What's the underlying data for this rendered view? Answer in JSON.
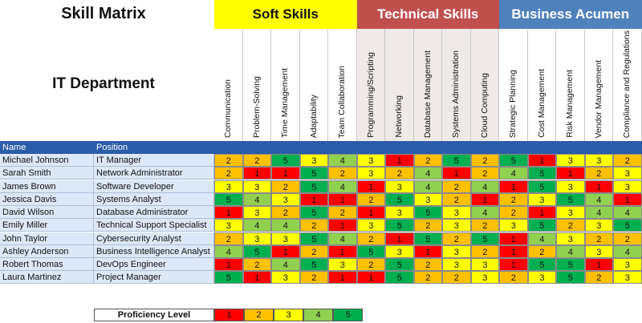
{
  "sheet": {
    "title": "Skill Matrix",
    "department": "IT Department"
  },
  "groups": [
    {
      "label": "Soft Skills",
      "color": "#ffff00",
      "text_color": "#111111"
    },
    {
      "label": "Technical Skills",
      "color": "#c0504d",
      "text_color": "#ffffff"
    },
    {
      "label": "Business Acumen",
      "color": "#4f81bd",
      "text_color": "#ffffff"
    }
  ],
  "skills": [
    "Communication",
    "Problem-Solving",
    "Time Management",
    "Adaptability",
    "Team Collaboration",
    "Programming/Scripting",
    "Networking",
    "Database Management",
    "Systems Administration",
    "Cloud Computing",
    "Strategic Planning",
    "Cost Management",
    "Risk Management",
    "Vendor Management",
    "Compliance and Regulations"
  ],
  "table": {
    "name_header": "Name",
    "position_header": "Position",
    "rows": [
      {
        "name": "Michael Johnson",
        "position": "IT Manager",
        "scores": [
          2,
          2,
          5,
          3,
          4,
          3,
          1,
          2,
          5,
          2,
          5,
          1,
          3,
          3,
          2
        ]
      },
      {
        "name": "Sarah Smith",
        "position": "Network Administrator",
        "scores": [
          2,
          1,
          1,
          5,
          2,
          3,
          2,
          4,
          1,
          2,
          4,
          5,
          1,
          2,
          3
        ]
      },
      {
        "name": "James Brown",
        "position": "Software Developer",
        "scores": [
          3,
          3,
          2,
          5,
          4,
          1,
          3,
          4,
          2,
          4,
          1,
          5,
          3,
          1,
          3
        ]
      },
      {
        "name": "Jessica Davis",
        "position": "Systems Analyst",
        "scores": [
          5,
          4,
          3,
          1,
          1,
          2,
          5,
          3,
          2,
          1,
          2,
          3,
          5,
          4,
          1
        ]
      },
      {
        "name": "David Wilson",
        "position": "Database Administrator",
        "scores": [
          1,
          3,
          2,
          5,
          2,
          1,
          3,
          5,
          3,
          4,
          2,
          1,
          3,
          4,
          4
        ]
      },
      {
        "name": "Emily Miller",
        "position": "Technical Support Specialist",
        "scores": [
          3,
          4,
          4,
          2,
          1,
          3,
          5,
          2,
          3,
          2,
          3,
          5,
          2,
          3,
          5
        ]
      },
      {
        "name": "John Taylor",
        "position": "Cybersecurity Analyst",
        "scores": [
          2,
          3,
          3,
          5,
          4,
          2,
          1,
          5,
          2,
          5,
          1,
          4,
          3,
          2,
          2
        ]
      },
      {
        "name": "Ashley Anderson",
        "position": "Business Intelligence Analyst",
        "scores": [
          4,
          5,
          1,
          2,
          1,
          5,
          3,
          1,
          3,
          2,
          1,
          2,
          4,
          3,
          4
        ]
      },
      {
        "name": "Robert Thomas",
        "position": "DevOps Engineer",
        "scores": [
          1,
          2,
          4,
          5,
          3,
          2,
          5,
          2,
          3,
          3,
          1,
          5,
          5,
          1,
          3
        ]
      },
      {
        "name": "Laura Martinez",
        "position": "Project Manager",
        "scores": [
          5,
          1,
          3,
          2,
          1,
          1,
          5,
          2,
          2,
          3,
          2,
          3,
          5,
          2,
          3
        ]
      }
    ]
  },
  "legend": {
    "label": "Proficiency Level",
    "levels": [
      1,
      2,
      3,
      4,
      5
    ]
  },
  "level_colors": {
    "1": "#ff0000",
    "2": "#ffc000",
    "3": "#ffff00",
    "4": "#92d050",
    "5": "#00b050"
  },
  "colors": {
    "header_band": "#2a5ca8",
    "name_bg": "#dce8f7"
  }
}
